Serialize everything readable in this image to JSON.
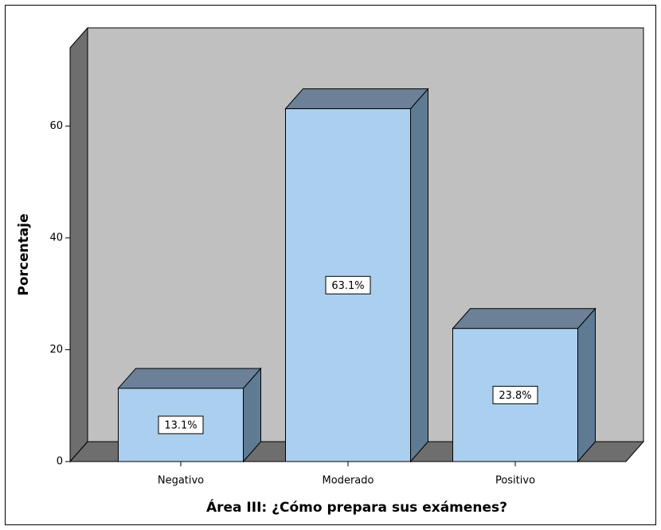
{
  "chart_data": {
    "type": "bar3d",
    "y_label": "Porcentaje",
    "x_label": "Área III: ¿Cómo prepara sus exámenes?",
    "categories": [
      "Negativo",
      "Moderado",
      "Positivo"
    ],
    "values": [
      13.1,
      63.1,
      23.8
    ],
    "value_labels": [
      "13.1%",
      "63.1%",
      "23.8%"
    ],
    "ylim": [
      0,
      74
    ],
    "yticks": [
      0,
      20,
      40,
      60
    ],
    "color": "#abcfee"
  }
}
